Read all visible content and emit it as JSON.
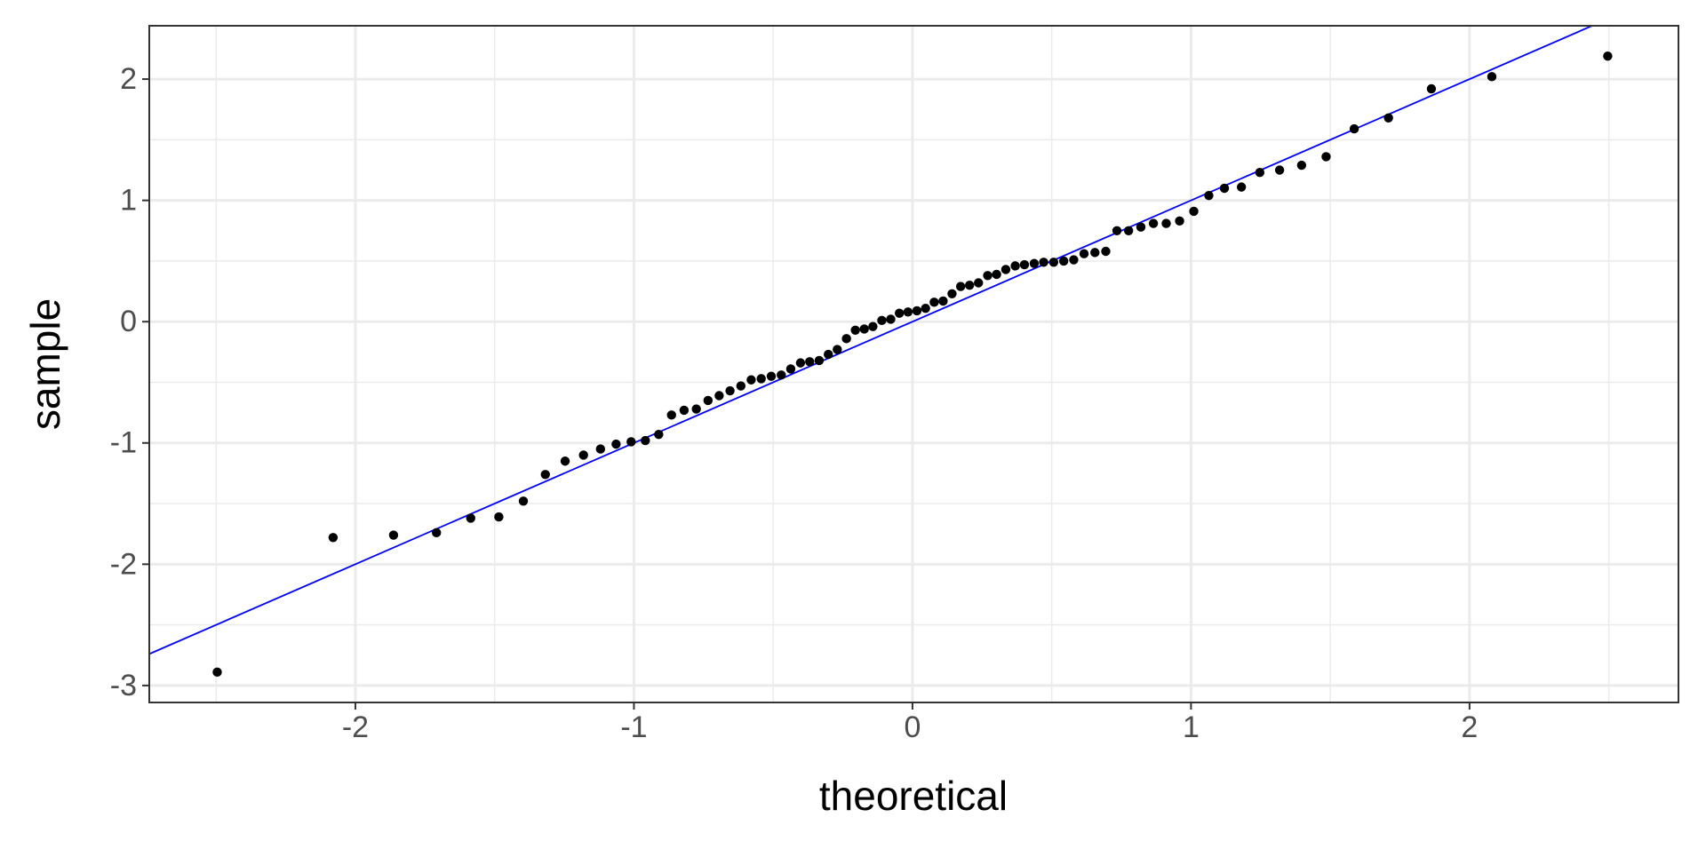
{
  "chart_data": {
    "type": "scatter",
    "x_label": "theoretical",
    "y_label": "sample",
    "xlim": [
      -2.74,
      2.75
    ],
    "ylim": [
      -3.14,
      2.44
    ],
    "xticks": [
      -2,
      -1,
      0,
      1,
      2
    ],
    "yticks": [
      -3,
      -2,
      -1,
      0,
      1,
      2
    ],
    "grid": true,
    "series": [
      {
        "color": "#000000",
        "x": [
          -2.496,
          -2.08,
          -1.863,
          -1.709,
          -1.586,
          -1.485,
          -1.397,
          -1.318,
          -1.247,
          -1.181,
          -1.12,
          -1.064,
          -1.01,
          -0.959,
          -0.911,
          -0.865,
          -0.82,
          -0.776,
          -0.734,
          -0.694,
          -0.655,
          -0.616,
          -0.579,
          -0.543,
          -0.507,
          -0.471,
          -0.437,
          -0.402,
          -0.369,
          -0.335,
          -0.302,
          -0.27,
          -0.237,
          -0.205,
          -0.173,
          -0.142,
          -0.11,
          -0.078,
          -0.047,
          -0.016,
          0.016,
          0.047,
          0.078,
          0.11,
          0.142,
          0.173,
          0.205,
          0.237,
          0.27,
          0.302,
          0.335,
          0.369,
          0.402,
          0.437,
          0.471,
          0.507,
          0.543,
          0.579,
          0.616,
          0.655,
          0.694,
          0.734,
          0.776,
          0.82,
          0.865,
          0.911,
          0.959,
          1.01,
          1.064,
          1.12,
          1.181,
          1.247,
          1.318,
          1.397,
          1.485,
          1.586,
          1.709,
          1.863,
          2.08,
          2.496
        ],
        "values": [
          -2.89,
          -1.78,
          -1.76,
          -1.74,
          -1.62,
          -1.61,
          -1.48,
          -1.26,
          -1.15,
          -1.1,
          -1.05,
          -1.01,
          -0.99,
          -0.98,
          -0.93,
          -0.77,
          -0.73,
          -0.72,
          -0.65,
          -0.61,
          -0.57,
          -0.53,
          -0.48,
          -0.47,
          -0.45,
          -0.44,
          -0.39,
          -0.34,
          -0.33,
          -0.32,
          -0.27,
          -0.23,
          -0.14,
          -0.07,
          -0.06,
          -0.04,
          0.01,
          0.02,
          0.07,
          0.08,
          0.09,
          0.11,
          0.16,
          0.17,
          0.23,
          0.29,
          0.3,
          0.32,
          0.38,
          0.39,
          0.43,
          0.46,
          0.47,
          0.48,
          0.49,
          0.49,
          0.5,
          0.51,
          0.56,
          0.57,
          0.58,
          0.75,
          0.75,
          0.78,
          0.81,
          0.81,
          0.83,
          0.91,
          1.04,
          1.1,
          1.11,
          1.23,
          1.25,
          1.29,
          1.36,
          1.59,
          1.68,
          1.92,
          2.02,
          2.19
        ]
      }
    ],
    "reference_line": {
      "slope": 1,
      "intercept": 0,
      "color": "#0000ff"
    }
  }
}
